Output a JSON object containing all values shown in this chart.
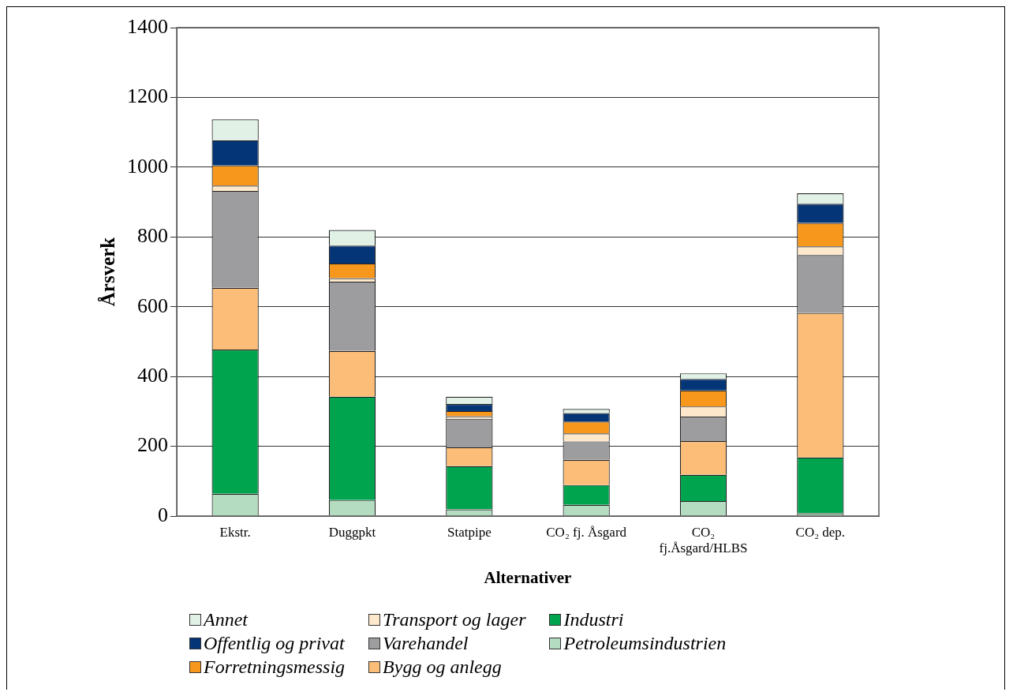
{
  "chart_data": {
    "type": "bar",
    "stacked": true,
    "xlabel": "Alternativer",
    "ylabel": "Årsverk",
    "categories": [
      "Ekstr.",
      "Duggpkt",
      "Statpipe",
      "CO₂ fj. Åsgard",
      "CO₂ fj.Åsgard/HLBS",
      "CO₂ dep."
    ],
    "ylim": [
      0,
      1400
    ],
    "yticks": [
      0,
      200,
      400,
      600,
      800,
      1000,
      1200,
      1400
    ],
    "grid": "y",
    "legend": "bottom",
    "series": [
      {
        "name": "Petroleumsindustrien",
        "color": "#b3dcc0",
        "values": [
          64,
          46,
          19,
          32,
          43,
          8
        ]
      },
      {
        "name": "Industri",
        "color": "#00a44f",
        "values": [
          413,
          296,
          124,
          57,
          75,
          160
        ]
      },
      {
        "name": "Bygg og anlegg",
        "color": "#fbbd77",
        "values": [
          177,
          131,
          54,
          72,
          97,
          414
        ]
      },
      {
        "name": "Varehandel",
        "color": "#9d9c9e",
        "values": [
          278,
          199,
          82,
          53,
          70,
          166
        ]
      },
      {
        "name": "Transport og lager",
        "color": "#fee8cc",
        "values": [
          15,
          10,
          7,
          23,
          29,
          25
        ]
      },
      {
        "name": "Forretningsmessig",
        "color": "#f7981d",
        "values": [
          58,
          42,
          15,
          34,
          46,
          67
        ]
      },
      {
        "name": "Offentlig og privat",
        "color": "#043577",
        "values": [
          72,
          51,
          20,
          24,
          33,
          55
        ]
      },
      {
        "name": "Annet",
        "color": "#e1f1e6",
        "values": [
          60,
          45,
          21,
          12,
          16,
          30
        ]
      }
    ]
  }
}
